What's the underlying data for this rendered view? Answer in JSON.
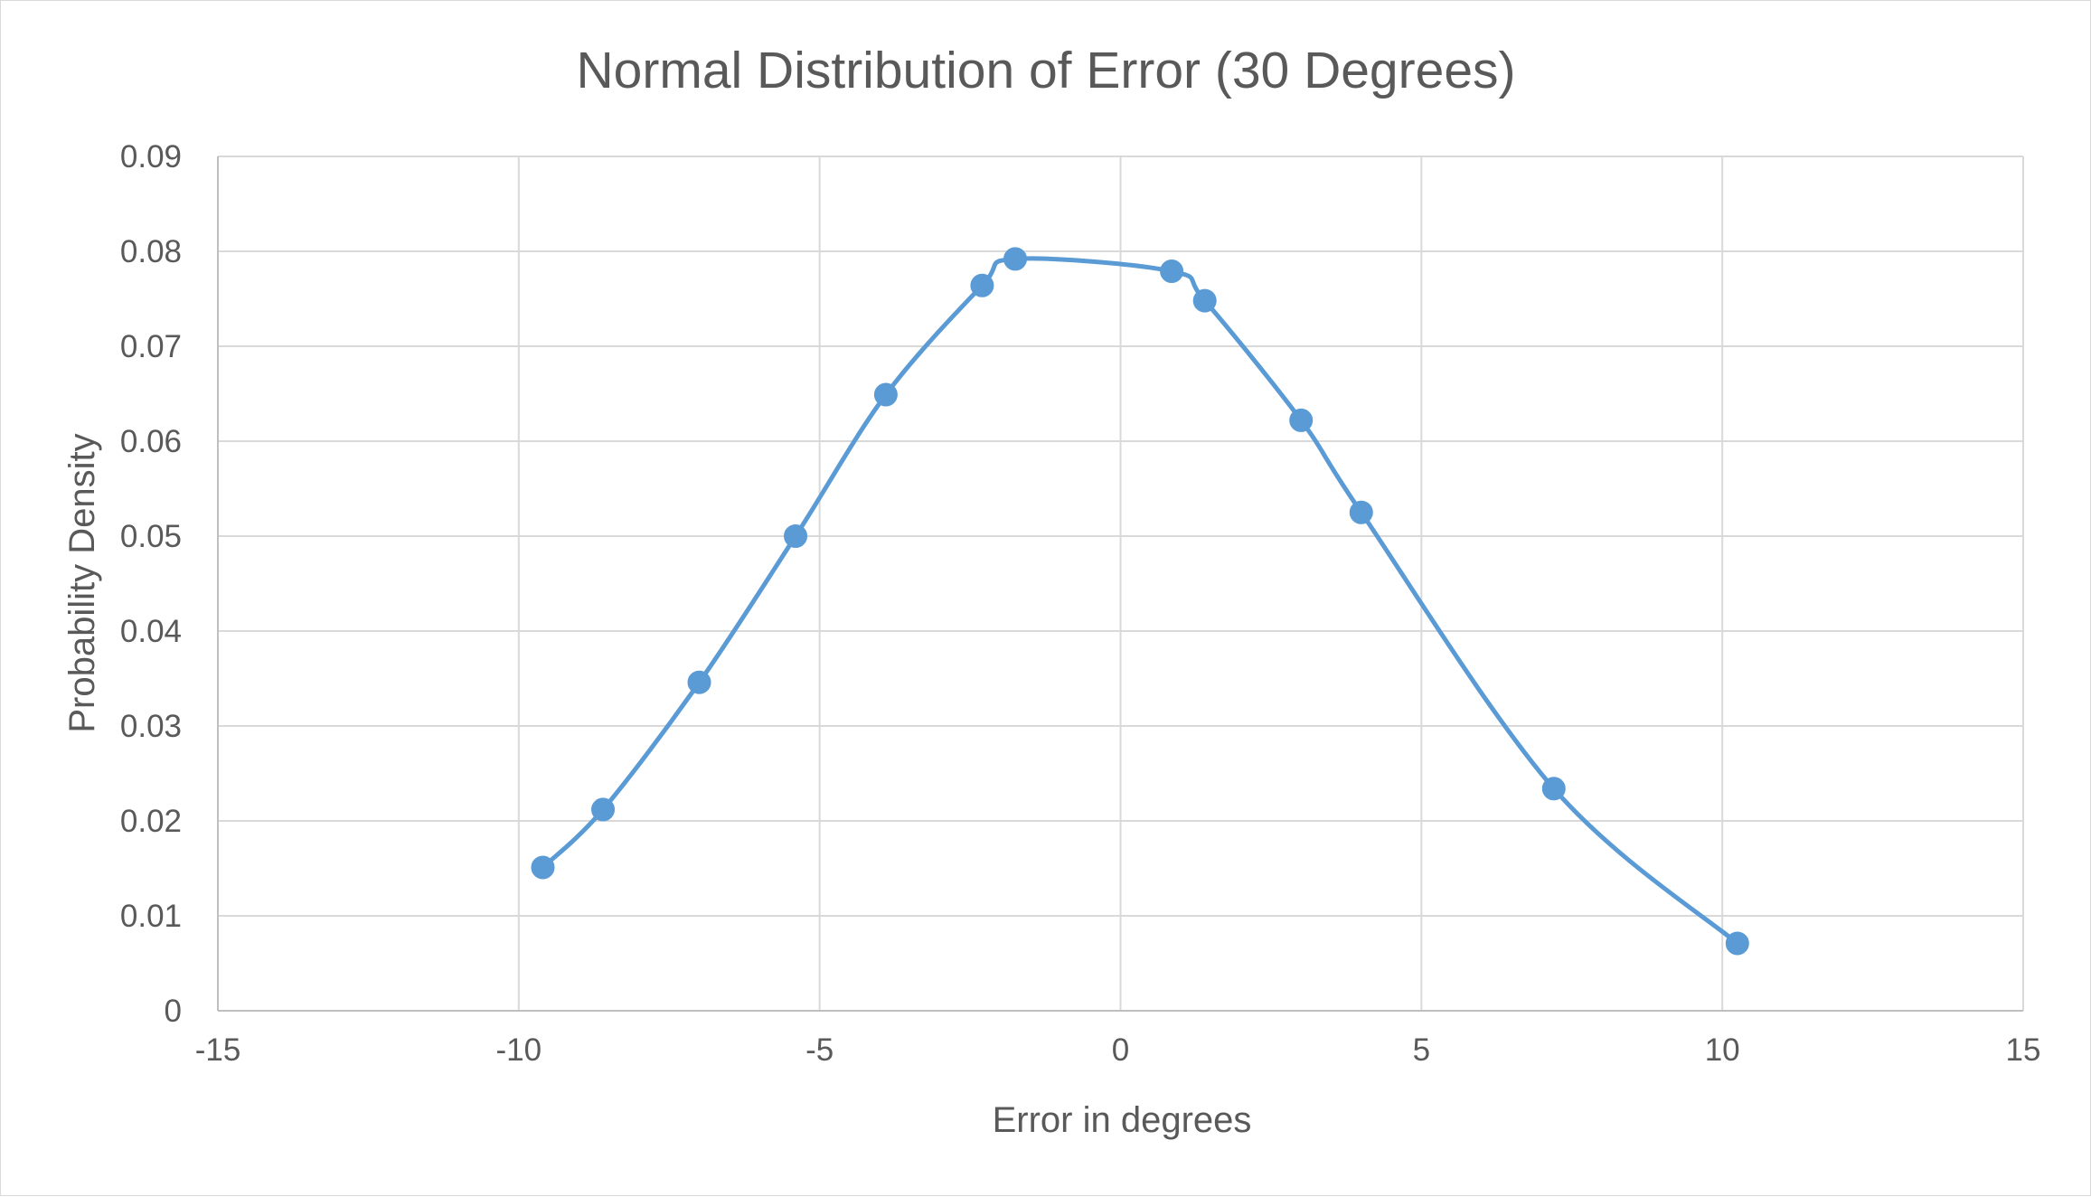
{
  "chart_data": {
    "type": "scatter",
    "title": "Normal Distribution of Error (30 Degrees)",
    "xlabel": "Error in degrees",
    "ylabel": "Probability Density",
    "xlim": [
      -15,
      15
    ],
    "ylim": [
      0,
      0.09
    ],
    "x_ticks": [
      "-15",
      "-10",
      "-5",
      "0",
      "5",
      "10",
      "15"
    ],
    "y_ticks": [
      "0",
      "0.01",
      "0.02",
      "0.03",
      "0.04",
      "0.05",
      "0.06",
      "0.07",
      "0.08",
      "0.09"
    ],
    "grid": true,
    "smooth_line": true,
    "legend": "none",
    "series": [
      {
        "color": "#5b9bd5",
        "x": [
          -9.6,
          -8.6,
          -7.0,
          -5.4,
          -3.9,
          -2.3,
          -1.75,
          0.85,
          1.4,
          3.0,
          4.0,
          7.2,
          10.25
        ],
        "y": [
          0.0151,
          0.0212,
          0.0346,
          0.05,
          0.0649,
          0.0764,
          0.0792,
          0.0779,
          0.0748,
          0.0622,
          0.0525,
          0.0234,
          0.0071
        ]
      }
    ]
  }
}
